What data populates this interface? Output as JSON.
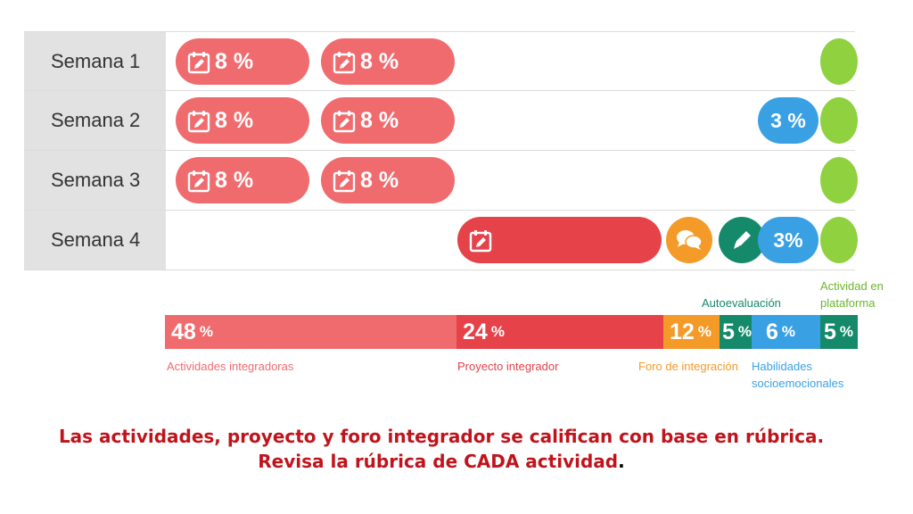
{
  "weeks": [
    {
      "label": "Semana 1"
    },
    {
      "label": "Semana 2"
    },
    {
      "label": "Semana 3"
    },
    {
      "label": "Semana 4"
    }
  ],
  "activity_pct": "8 %",
  "hab_week2_pct": "3 %",
  "hab_week4_pct": "3%",
  "summary": {
    "act": {
      "value": "48",
      "unit": "%",
      "label": "Actividades integradoras"
    },
    "proj": {
      "value": "24",
      "unit": "%",
      "label": "Proyecto integrador"
    },
    "foro": {
      "value": "12",
      "unit": "%",
      "label": "Foro de integración"
    },
    "auto": {
      "value": "5",
      "unit": "%",
      "label": "Autoevaluación"
    },
    "hab": {
      "value": "6",
      "unit": "%",
      "label": "Habilidades socioemocionales"
    },
    "plat": {
      "value": "5",
      "unit": "%",
      "label": "Actividad en plataforma"
    }
  },
  "note": {
    "line1": "Las actividades, proyecto y foro integrador se califican con base en rúbrica.",
    "line2": "Revisa la rúbrica de CADA actividad",
    "line2_end": "."
  },
  "colors": {
    "actividad": "#f06b6e",
    "proyecto": "#e5424a",
    "foro": "#f39a28",
    "autoevaluacion": "#148a6a",
    "habilidades": "#3aa0e4",
    "plataforma": "#8fd13f",
    "note": "#c0141c"
  },
  "icons": [
    "calendar-edit-icon",
    "chat-bubbles-icon",
    "pencil-icon"
  ]
}
